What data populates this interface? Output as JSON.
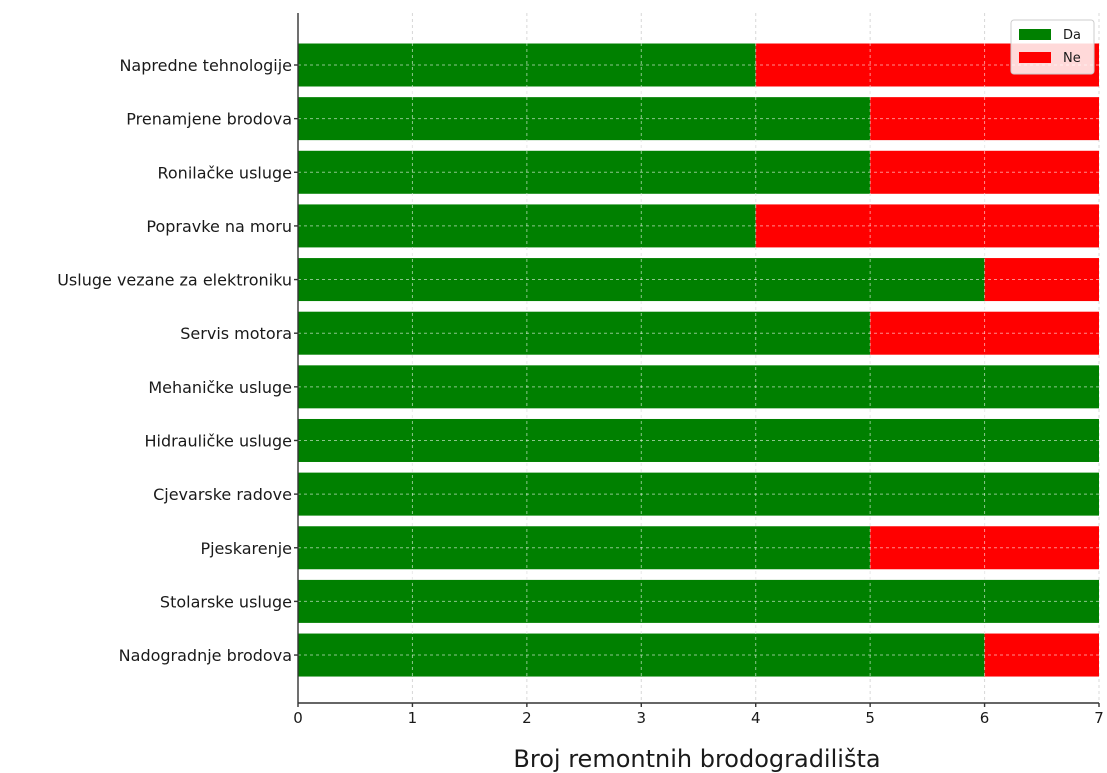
{
  "chart_data": {
    "type": "bar",
    "orientation": "horizontal",
    "stacked": true,
    "title": "",
    "xlabel": "Broj remontnih brodogradilišta",
    "ylabel": "",
    "xlim": [
      0,
      7
    ],
    "xticks": [
      "0",
      "1",
      "2",
      "3",
      "4",
      "5",
      "6",
      "7"
    ],
    "grid": true,
    "legend_position": "top-right",
    "categories": [
      "Napredne tehnologije",
      "Prenamjene brodova",
      "Ronilačke usluge",
      "Popravke na moru",
      "Usluge vezane za elektroniku",
      "Servis motora",
      "Mehaničke usluge",
      "Hidrauličke usluge",
      "Cjevarske radove",
      "Pjeskarenje",
      "Stolarske usluge",
      "Nadogradnje brodova"
    ],
    "series": [
      {
        "name": "Da",
        "color": "#008000",
        "values": [
          4,
          5,
          5,
          4,
          6,
          5,
          7,
          7,
          7,
          5,
          7,
          6
        ]
      },
      {
        "name": "Ne",
        "color": "#ff0000",
        "values": [
          3,
          2,
          2,
          3,
          1,
          2,
          0,
          0,
          0,
          2,
          0,
          1
        ]
      }
    ]
  }
}
